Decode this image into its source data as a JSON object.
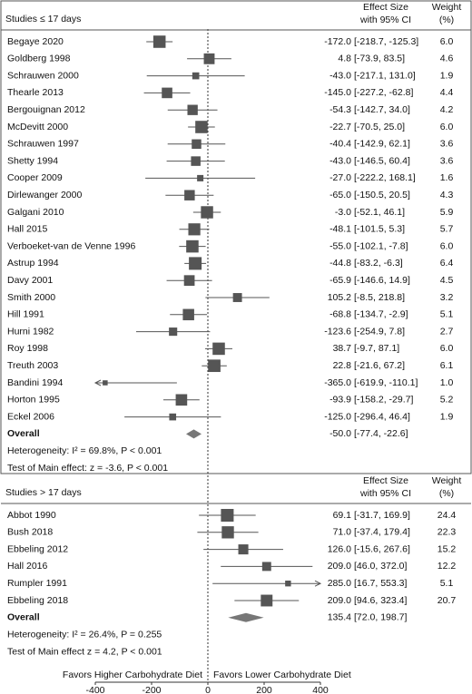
{
  "chart_data": [
    {
      "type": "forest",
      "title": "Studies ≤ 17 days",
      "effect_header": [
        "Effect Size",
        "with 95% CI"
      ],
      "weight_header": [
        "Weight",
        "(%)"
      ],
      "categories": [
        "Begaye 2020",
        "Goldberg 1998",
        "Schrauwen 2000",
        "Thearle 2013",
        "Bergouignan 2012",
        "McDevitt 2000",
        "Schrauwen 1997",
        "Shetty 1994",
        "Cooper 2009",
        "Dirlewanger 2000",
        "Galgani 2010",
        "Hall 2015",
        "Verboeket-van de Venne 1996",
        "Astrup 1994",
        "Davy 2001",
        "Smith 2000",
        "Hill 1991",
        "Hurni 1982",
        "Roy 1998",
        "Treuth 2003",
        "Bandini 1994",
        "Horton 1995",
        "Eckel 2006"
      ],
      "values": [
        -172.0,
        4.8,
        -43.0,
        -145.0,
        -54.3,
        -22.7,
        -40.4,
        -43.0,
        -27.0,
        -65.0,
        -3.0,
        -48.1,
        -55.0,
        -44.8,
        -65.9,
        105.2,
        -68.8,
        -123.6,
        38.7,
        22.8,
        -365.0,
        -93.9,
        -125.0
      ],
      "value_labels": [
        "-172.0",
        "4.8",
        "-43.0",
        "-145.0",
        "-54.3",
        "-22.7",
        "-40.4",
        "-43.0",
        "-27.0",
        "-65.0",
        "-3.0",
        "-48.1",
        "-55.0",
        "-44.8",
        "-65.9",
        "105.2",
        "-68.8",
        "-123.6",
        "38.7",
        "22.8",
        "-365.0",
        "-93.9",
        "-125.0"
      ],
      "lower": [
        -218.7,
        -73.9,
        -217.1,
        -227.2,
        -142.7,
        -70.5,
        -142.9,
        -146.5,
        -222.2,
        -150.5,
        -52.1,
        -101.5,
        -102.1,
        -83.2,
        -146.6,
        -8.5,
        -134.7,
        -254.9,
        -9.7,
        -21.6,
        -619.9,
        -158.2,
        -296.4
      ],
      "upper": [
        -125.3,
        83.5,
        131.0,
        -62.8,
        34.0,
        25.0,
        62.1,
        60.4,
        168.1,
        20.5,
        46.1,
        5.3,
        -7.8,
        -6.3,
        14.9,
        218.8,
        -2.9,
        7.8,
        87.1,
        67.2,
        -110.1,
        -29.7,
        46.4
      ],
      "ci_labels": [
        "[-218.7, -125.3]",
        "[-73.9, 83.5]",
        "[-217.1, 131.0]",
        "[-227.2, -62.8]",
        "[-142.7, 34.0]",
        "[-70.5, 25.0]",
        "[-142.9, 62.1]",
        "[-146.5, 60.4]",
        "[-222.2, 168.1]",
        "[-150.5, 20.5]",
        "[-52.1, 46.1]",
        "[-101.5, 5.3]",
        "[-102.1, -7.8]",
        "[-83.2, -6.3]",
        "[-146.6, 14.9]",
        "[-8.5, 218.8]",
        "[-134.7, -2.9]",
        "[-254.9, 7.8]",
        "[-9.7, 87.1]",
        "[-21.6, 67.2]",
        "[-619.9, -110.1]",
        "[-158.2, -29.7]",
        "[-296.4, 46.4]"
      ],
      "weights": [
        6.0,
        4.6,
        1.9,
        4.4,
        4.2,
        6.0,
        3.6,
        3.6,
        1.6,
        4.3,
        5.9,
        5.7,
        6.0,
        6.4,
        4.5,
        3.2,
        5.1,
        2.7,
        6.0,
        6.1,
        1.0,
        5.2,
        1.9
      ],
      "weight_labels": [
        "6.0",
        "4.6",
        "1.9",
        "4.4",
        "4.2",
        "6.0",
        "3.6",
        "3.6",
        "1.6",
        "4.3",
        "5.9",
        "5.7",
        "6.0",
        "6.4",
        "4.5",
        "3.2",
        "5.1",
        "2.7",
        "6.0",
        "6.1",
        "1.0",
        "5.2",
        "1.9"
      ],
      "overall": {
        "label": "Overall",
        "value": -50.0,
        "value_label": "-50.0",
        "lower": -77.4,
        "upper": -22.6,
        "ci_label": "[-77.4, -22.6]"
      },
      "heterogeneity": "Heterogeneity: I² = 69.8%, P < 0.001",
      "test": "Test of Main effect: z = -3.6, P < 0.001",
      "color": "#555555"
    },
    {
      "type": "forest",
      "title": "Studies > 17 days",
      "effect_header": [
        "Effect Size",
        "with 95% CI"
      ],
      "weight_header": [
        "Weight",
        "(%)"
      ],
      "categories": [
        "Abbot 1990",
        "Bush 2018",
        "Ebbeling 2012",
        "Hall 2016",
        "Rumpler 1991",
        "Ebbeling 2018"
      ],
      "values": [
        69.1,
        71.0,
        126.0,
        209.0,
        285.0,
        209.0
      ],
      "value_labels": [
        "69.1",
        "71.0",
        "126.0",
        "209.0",
        "285.0",
        "209.0"
      ],
      "lower": [
        -31.7,
        -37.4,
        -15.6,
        46.0,
        16.7,
        94.6
      ],
      "upper": [
        169.9,
        179.4,
        267.6,
        372.0,
        553.3,
        323.4
      ],
      "ci_labels": [
        "[-31.7, 169.9]",
        "[-37.4, 179.4]",
        "[-15.6, 267.6]",
        "[46.0, 372.0]",
        "[16.7, 553.3]",
        "[94.6, 323.4]"
      ],
      "weights": [
        24.4,
        22.3,
        15.2,
        12.2,
        5.1,
        20.7
      ],
      "weight_labels": [
        "24.4",
        "22.3",
        "15.2",
        "12.2",
        "5.1",
        "20.7"
      ],
      "overall": {
        "label": "Overall",
        "value": 135.4,
        "value_label": "135.4",
        "lower": 72.0,
        "upper": 198.7,
        "ci_label": "[72.0, 198.7]"
      },
      "heterogeneity": "Heterogeneity: I² = 26.4%, P = 0.255",
      "test": "Test of Main effect z = 4.2, P < 0.001",
      "color": "#555555",
      "xlim": [
        -400,
        400
      ],
      "xticks": [
        -400,
        -200,
        0,
        200,
        400
      ],
      "annotations": [
        "Favors Higher Carbohydrate Diet",
        "Favors Lower Carbohydrate Diet"
      ]
    }
  ]
}
